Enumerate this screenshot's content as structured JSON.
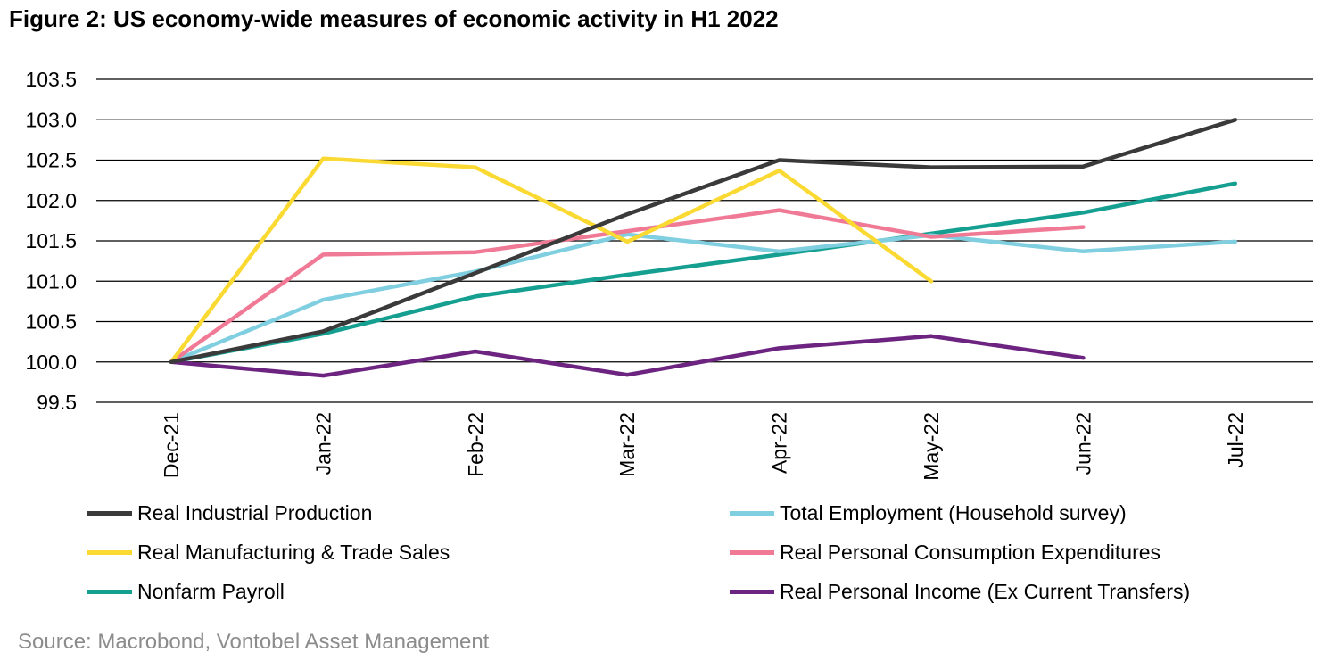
{
  "figure": {
    "title": "Figure 2: US economy-wide measures of economic activity in H1 2022",
    "source": "Source: Macrobond, Vontobel Asset Management"
  },
  "chart_data": {
    "type": "line",
    "title": "Figure 2: US economy-wide measures of economic activity in H1 2022",
    "xlabel": "",
    "ylabel": "",
    "categories": [
      "Dec-21",
      "Jan-22",
      "Feb-22",
      "Mar-22",
      "Apr-22",
      "May-22",
      "Jun-22",
      "Jul-22"
    ],
    "ylim": [
      99.5,
      103.5
    ],
    "yticks": [
      "99.5",
      "100.0",
      "100.5",
      "101.0",
      "101.5",
      "102.0",
      "102.5",
      "103.0",
      "103.5"
    ],
    "grid": "horizontal",
    "legend": "bottom",
    "series": [
      {
        "name": "Real Industrial Production",
        "color": "#3a3a3a",
        "values": [
          100.0,
          100.38,
          101.1,
          101.83,
          102.5,
          102.41,
          102.42,
          103.0
        ]
      },
      {
        "name": "Total Employment (Household survey)",
        "color": "#7fcfe0",
        "values": [
          100.0,
          100.77,
          101.12,
          101.58,
          101.37,
          101.57,
          101.37,
          101.49
        ]
      },
      {
        "name": "Real Manufacturing & Trade Sales",
        "color": "#fad932",
        "values": [
          100.0,
          102.52,
          102.41,
          101.49,
          102.37,
          101.0,
          null,
          null
        ]
      },
      {
        "name": "Real Personal Consumption Expenditures",
        "color": "#f07a95",
        "values": [
          100.0,
          101.33,
          101.36,
          101.62,
          101.88,
          101.55,
          101.67,
          null
        ]
      },
      {
        "name": "Nonfarm Payroll",
        "color": "#159f91",
        "values": [
          100.0,
          100.35,
          100.81,
          101.08,
          101.33,
          101.59,
          101.85,
          102.21
        ]
      },
      {
        "name": "Real Personal Income (Ex Current Transfers)",
        "color": "#6c2480",
        "values": [
          100.0,
          99.83,
          100.13,
          99.84,
          100.17,
          100.32,
          100.05,
          null
        ]
      }
    ]
  }
}
